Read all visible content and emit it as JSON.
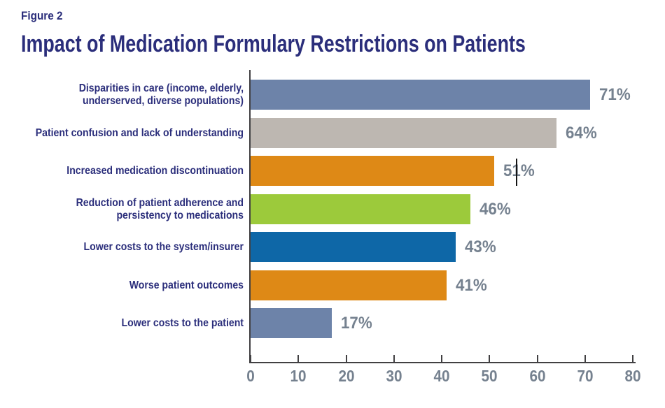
{
  "figure_label": "Figure 2",
  "title": "Impact of Medication Formulary Restrictions on Patients",
  "colors": {
    "title_navy": "#2B2E7B",
    "label_navy": "#2B2E7B",
    "value_gray": "#75818F",
    "axis": "#414042",
    "steel_blue": "#6D83A9",
    "warm_gray": "#BDB7B1",
    "orange": "#DE8916",
    "green": "#9CCA3B",
    "blue": "#0E67A7"
  },
  "chart_data": {
    "type": "bar",
    "orientation": "horizontal",
    "title": "Impact of Medication Formulary Restrictions on Patients",
    "categories": [
      "Disparities in care (income, elderly,\nunderserved, diverse populations)",
      "Patient confusion and lack of understanding",
      "Increased medication discontinuation",
      "Reduction of patient adherence and\npersistency to medications",
      "Lower costs to the system/insurer",
      "Worse patient outcomes",
      "Lower costs to the patient"
    ],
    "values": [
      71,
      64,
      51,
      46,
      43,
      41,
      17
    ],
    "value_labels": [
      "71%",
      "64%",
      "51%",
      "46%",
      "43%",
      "41%",
      "17%"
    ],
    "bar_colors": [
      "#6D83A9",
      "#BDB7B1",
      "#DE8916",
      "#9CCA3B",
      "#0E67A7",
      "#DE8916",
      "#6D83A9"
    ],
    "xlim": [
      0,
      80
    ],
    "x_ticks": [
      "0",
      "10",
      "20",
      "30",
      "40",
      "50",
      "60",
      "70",
      "80"
    ],
    "xlabel": "",
    "ylabel": "",
    "grid": false,
    "legend": false
  },
  "artifact_note": "thin text-cursor line captured over the 51% value label"
}
